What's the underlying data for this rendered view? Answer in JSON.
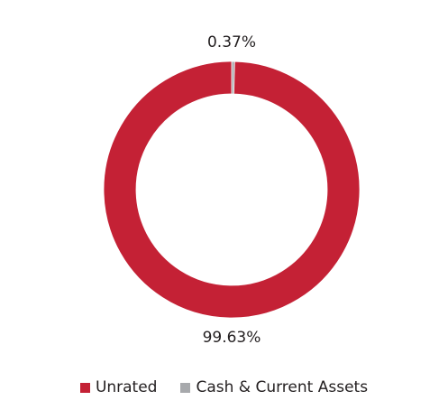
{
  "chart_data": {
    "type": "pie",
    "variant": "donut",
    "title": "",
    "slices": [
      {
        "label": "Unrated",
        "value": 99.63,
        "value_label": "99.63%",
        "color": "#c42135"
      },
      {
        "label": "Cash & Current Assets",
        "value": 0.37,
        "value_label": "0.37%",
        "color": "#a7a9ac"
      }
    ],
    "legend_position": "bottom"
  }
}
